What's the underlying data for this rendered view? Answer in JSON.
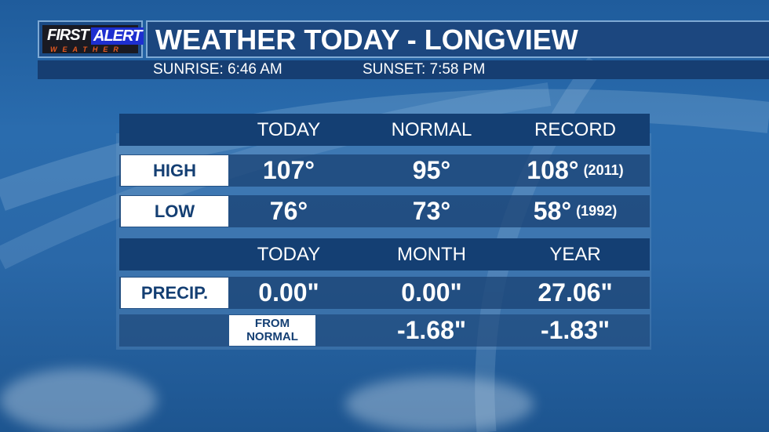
{
  "logo": {
    "text": "FIRST ALERT WEATHER",
    "first": "FIRST",
    "alert": "ALERT",
    "weather": "WEATHER"
  },
  "header": {
    "title": "WEATHER TODAY - LONGVIEW",
    "sunrise": "SUNRISE:  6:46 AM",
    "sunset": "SUNSET: 7:58 PM"
  },
  "temps": {
    "columns": [
      "TODAY",
      "NORMAL",
      "RECORD"
    ],
    "rows": [
      {
        "label": "HIGH",
        "today": "107°",
        "normal": "95°",
        "record": "108°",
        "record_year": "(2011)"
      },
      {
        "label": "LOW",
        "today": "76°",
        "normal": "73°",
        "record": "58°",
        "record_year": "(1992)"
      }
    ]
  },
  "precip": {
    "columns": [
      "TODAY",
      "MONTH",
      "YEAR"
    ],
    "label": "PRECIP.",
    "today": "0.00\"",
    "month": "0.00\"",
    "year": "27.06\"",
    "from_normal_label": "FROM NORMAL",
    "from_normal_1": "FROM",
    "from_normal_2": "NORMAL",
    "month_departure": "-1.68\"",
    "year_departure": "-1.83\""
  },
  "colors": {
    "navy": "#143f73",
    "background": "#2a6cae",
    "label_bg": "#ffffff"
  }
}
